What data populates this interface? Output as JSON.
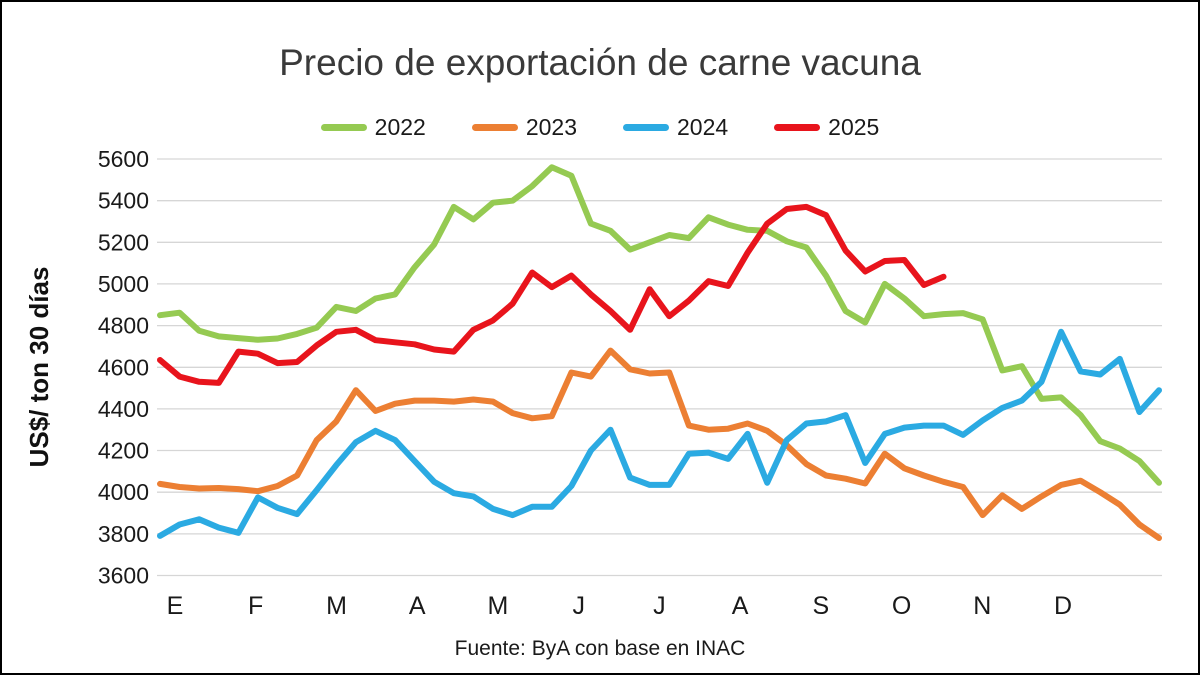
{
  "chart_data": {
    "type": "line",
    "title": "Precio de exportación de carne vacuna",
    "ylabel": "US$/ ton 30 días",
    "xlabel": "",
    "source_note": "Fuente: ByA con base en INAC",
    "x_tick_labels": [
      "E",
      "F",
      "M",
      "A",
      "M",
      "J",
      "J",
      "A",
      "S",
      "O",
      "N",
      "D"
    ],
    "x_unit": "weekly points, months Jan-Dec",
    "ylim": [
      3600,
      5600
    ],
    "ytick_step": 200,
    "grid": "horizontal",
    "legend_position": "top",
    "colors": {
      "grid": "#D6D6D6",
      "text": "#1A1A1A",
      "title": "#3A3A3A",
      "border": "#000000",
      "background": "#FFFFFF"
    },
    "series": [
      {
        "name": "2022",
        "color": "#95CA52",
        "values": [
          4850,
          4862,
          4775,
          4748,
          4740,
          4732,
          4738,
          4760,
          4790,
          4890,
          4870,
          4930,
          4950,
          5080,
          5190,
          5370,
          5310,
          5390,
          5400,
          5470,
          5560,
          5520,
          5290,
          5255,
          5165,
          5200,
          5235,
          5220,
          5320,
          5285,
          5260,
          5255,
          5205,
          5175,
          5040,
          4870,
          4815,
          5000,
          4930,
          4845,
          4855,
          4860,
          4830,
          4585,
          4605,
          4448,
          4455,
          4370,
          4245,
          4210,
          4150,
          4045
        ]
      },
      {
        "name": "2023",
        "color": "#EC7F33",
        "values": [
          4040,
          4025,
          4018,
          4020,
          4015,
          4005,
          4030,
          4080,
          4250,
          4340,
          4490,
          4390,
          4425,
          4440,
          4440,
          4435,
          4445,
          4435,
          4380,
          4355,
          4365,
          4575,
          4555,
          4680,
          4590,
          4570,
          4575,
          4320,
          4300,
          4305,
          4330,
          4295,
          4225,
          4135,
          4080,
          4065,
          4042,
          4185,
          4115,
          4080,
          4050,
          4025,
          3890,
          3985,
          3920,
          3980,
          4035,
          4055,
          4000,
          3940,
          3845,
          3780
        ]
      },
      {
        "name": "2024",
        "color": "#2BAAE2",
        "values": [
          3790,
          3845,
          3870,
          3830,
          3805,
          3975,
          3925,
          3895,
          4010,
          4130,
          4240,
          4295,
          4250,
          4150,
          4050,
          3995,
          3980,
          3920,
          3890,
          3930,
          3930,
          4030,
          4200,
          4300,
          4070,
          4035,
          4035,
          4185,
          4190,
          4160,
          4280,
          4045,
          4250,
          4330,
          4340,
          4370,
          4140,
          4280,
          4310,
          4320,
          4320,
          4275,
          4345,
          4405,
          4440,
          4530,
          4770,
          4580,
          4565,
          4640,
          4385,
          4490
        ]
      },
      {
        "name": "2025",
        "color": "#E8141C",
        "values": [
          4635,
          4555,
          4530,
          4525,
          4675,
          4665,
          4620,
          4625,
          4705,
          4770,
          4780,
          4730,
          4720,
          4710,
          4685,
          4675,
          4780,
          4825,
          4905,
          5055,
          4985,
          5040,
          4950,
          4870,
          4780,
          4975,
          4845,
          4920,
          5013,
          4990,
          5150,
          5290,
          5360,
          5370,
          5330,
          5160,
          5060,
          5110,
          5115,
          4995,
          5035
        ]
      }
    ]
  }
}
